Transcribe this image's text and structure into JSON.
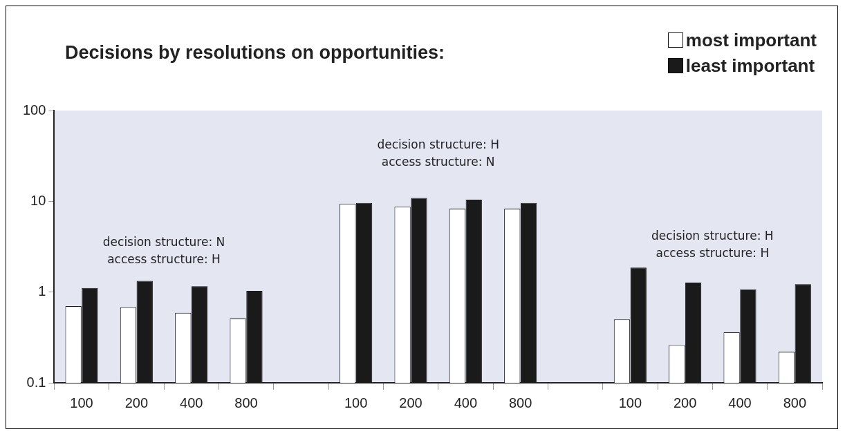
{
  "chart_data": {
    "type": "bar",
    "title": "Decisions by resolutions on opportunities:",
    "categories": [
      "100",
      "200",
      "400",
      "800",
      null,
      "100",
      "200",
      "400",
      "800",
      null,
      "100",
      "200",
      "400",
      "800"
    ],
    "series": [
      {
        "name": "most important",
        "color": "#ffffff",
        "values": [
          0.7,
          0.68,
          0.59,
          0.51,
          null,
          9.4,
          8.7,
          8.3,
          8.3,
          null,
          0.5,
          0.26,
          0.36,
          0.22
        ]
      },
      {
        "name": "least important",
        "color": "#1a1a1a",
        "values": [
          1.11,
          1.33,
          1.16,
          1.03,
          null,
          9.6,
          10.9,
          10.4,
          9.6,
          null,
          1.86,
          1.27,
          1.07,
          1.22
        ]
      }
    ],
    "log": true,
    "ylim": [
      0.1,
      100
    ],
    "yticks": [
      0.1,
      1,
      10,
      100
    ],
    "legend": "top right",
    "annotations": [
      "decision structure: N\naccess structure: H",
      "decision structure: H\naccess structure: N",
      "decision structure: H\naccess structure: H"
    ]
  }
}
